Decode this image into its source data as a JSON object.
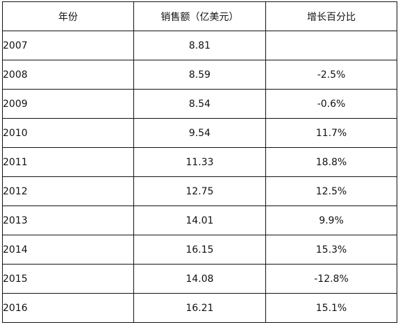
{
  "table": {
    "headers": {
      "year": "年份",
      "sales": "销售额（亿美元）",
      "growth": "增长百分比"
    },
    "rows": [
      {
        "year": "2007",
        "sales": "8.81",
        "growth": ""
      },
      {
        "year": "2008",
        "sales": "8.59",
        "growth": "-2.5%"
      },
      {
        "year": "2009",
        "sales": "8.54",
        "growth": "-0.6%"
      },
      {
        "year": "2010",
        "sales": "9.54",
        "growth": "11.7%"
      },
      {
        "year": "2011",
        "sales": "11.33",
        "growth": "18.8%"
      },
      {
        "year": "2012",
        "sales": "12.75",
        "growth": "12.5%"
      },
      {
        "year": "2013",
        "sales": "14.01",
        "growth": "9.9%"
      },
      {
        "year": "2014",
        "sales": "16.15",
        "growth": "15.3%"
      },
      {
        "year": "2015",
        "sales": "14.08",
        "growth": "-12.8%"
      },
      {
        "year": "2016",
        "sales": "16.21",
        "growth": "15.1%"
      }
    ]
  }
}
